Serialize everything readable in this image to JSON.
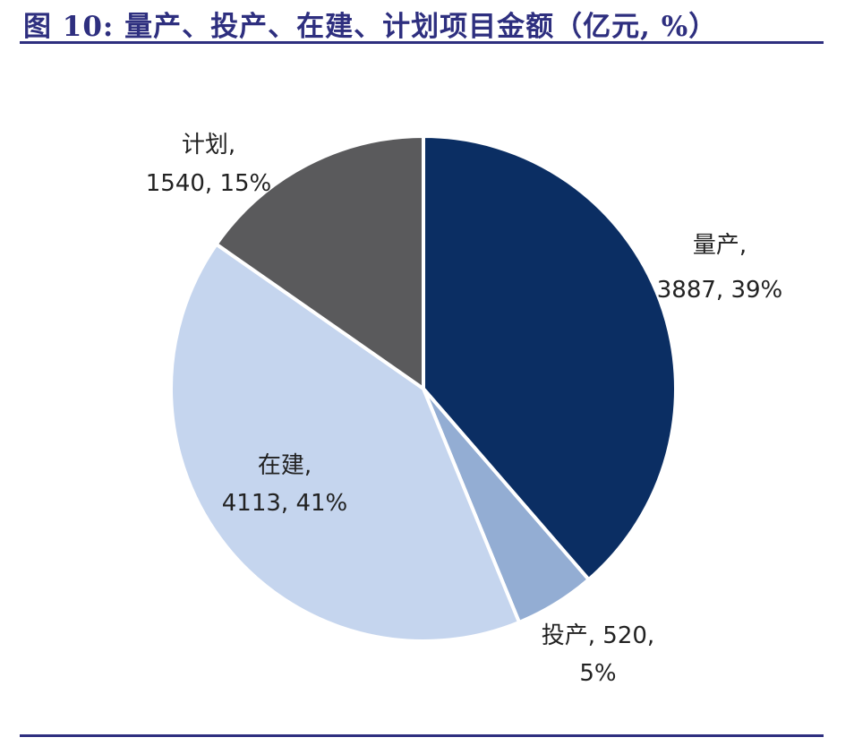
{
  "figure": {
    "title": "图 10: 量产、投产、在建、计划项目金额（亿元, %）"
  },
  "chart_data": {
    "type": "pie",
    "title": "图 10: 量产、投产、在建、计划项目金额（亿元, %）",
    "unit": "亿元",
    "start": "12 o'clock",
    "direction": "clockwise",
    "slices": [
      {
        "name": "量产",
        "value": 3887,
        "percent": "39%",
        "color": "#0b2e63",
        "label_lines": [
          "量产,",
          "3887, 39%"
        ]
      },
      {
        "name": "投产",
        "value": 520,
        "percent": "5%",
        "color": "#93add3",
        "label_lines": [
          "投产, 520,",
          "5%"
        ]
      },
      {
        "name": "在建",
        "value": 4113,
        "percent": "41%",
        "color": "#c5d5ee",
        "label_lines": [
          "在建,",
          "4113, 41%"
        ]
      },
      {
        "name": "计划",
        "value": 1540,
        "percent": "15%",
        "color": "#5a5a5c",
        "label_lines": [
          "计划,",
          "1540, 15%"
        ]
      }
    ]
  }
}
